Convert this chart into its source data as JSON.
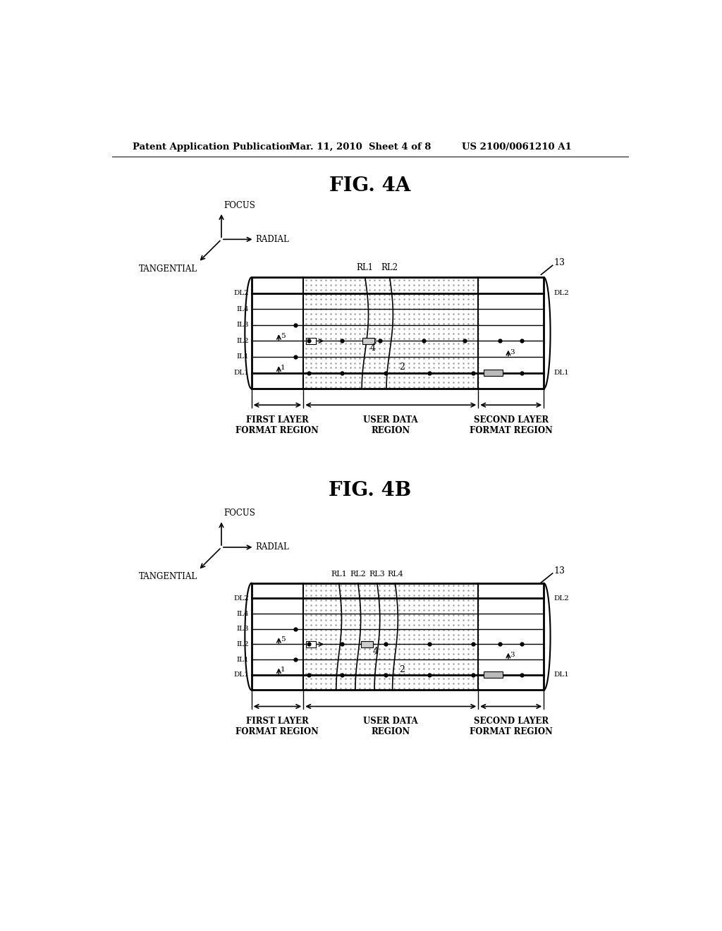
{
  "header_left": "Patent Application Publication",
  "header_mid": "Mar. 11, 2010  Sheet 4 of 8",
  "header_right": "US 2100/0061210 A1",
  "fig4a_title": "FIG. 4A",
  "fig4b_title": "FIG. 4B",
  "bg_color": "#ffffff",
  "fg_color": "#000000"
}
